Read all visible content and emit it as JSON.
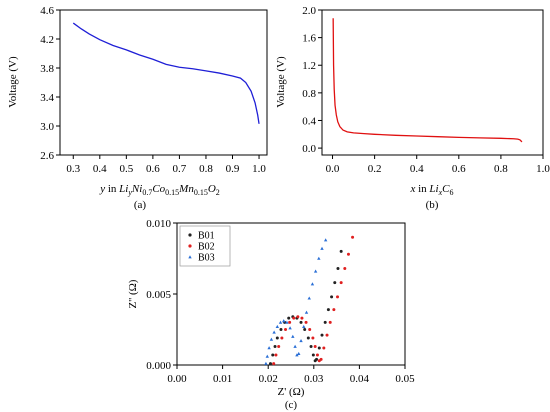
{
  "colors": {
    "a": "#1f1fd6",
    "b": "#e01010",
    "c_b01": "#222222",
    "c_b02": "#e02020",
    "c_b03": "#2a6fd6"
  },
  "chart_data": [
    {
      "type": "line",
      "panel": "(a)",
      "ylabel": "Voltage (V)",
      "xlabel_parts": {
        "y": "y",
        "in": " in ",
        "li": "Li",
        "ni": "Ni",
        "ni_sub": "0.7",
        "co": "Co",
        "co_sub": "0.15",
        "mn": "Mn",
        "mn_sub": "0.15",
        "o": "O",
        "o_sub": "2"
      },
      "xlim": [
        0.25,
        1.03
      ],
      "ylim": [
        2.6,
        4.6
      ],
      "xticks": [
        0.3,
        0.4,
        0.5,
        0.6,
        0.7,
        0.8,
        0.9,
        1.0
      ],
      "yticks": [
        2.6,
        3.0,
        3.4,
        3.8,
        4.2,
        4.6
      ],
      "xtick_labels": [
        "0.3",
        "0.4",
        "0.5",
        "0.6",
        "0.7",
        "0.8",
        "0.9",
        "1.0"
      ],
      "ytick_labels": [
        "2.6",
        "3.0",
        "3.4",
        "3.8",
        "4.2",
        "4.6"
      ],
      "x": [
        0.3,
        0.33,
        0.36,
        0.4,
        0.45,
        0.5,
        0.55,
        0.6,
        0.65,
        0.7,
        0.75,
        0.8,
        0.85,
        0.9,
        0.93,
        0.95,
        0.97,
        0.985,
        0.995,
        1.0
      ],
      "y": [
        4.42,
        4.34,
        4.27,
        4.19,
        4.11,
        4.05,
        3.98,
        3.92,
        3.85,
        3.81,
        3.79,
        3.76,
        3.73,
        3.69,
        3.66,
        3.6,
        3.48,
        3.32,
        3.15,
        3.03
      ]
    },
    {
      "type": "line",
      "panel": "(b)",
      "ylabel": "Voltage (V)",
      "xlabel_parts": {
        "x": "x",
        "in": " in ",
        "li": "Li",
        "li_sub": "x",
        "c": "C",
        "c_sub": "6"
      },
      "xlim": [
        -0.05,
        1.0
      ],
      "ylim": [
        -0.1,
        2.0
      ],
      "xticks": [
        0.0,
        0.2,
        0.4,
        0.6,
        0.8,
        1.0
      ],
      "yticks": [
        0.0,
        0.4,
        0.8,
        1.2,
        1.6,
        2.0
      ],
      "xtick_labels": [
        "0.0",
        "0.2",
        "0.4",
        "0.6",
        "0.8",
        "1.0"
      ],
      "ytick_labels": [
        "0.0",
        "0.4",
        "0.8",
        "1.2",
        "1.6",
        "2.0"
      ],
      "x": [
        0.003,
        0.005,
        0.008,
        0.012,
        0.018,
        0.025,
        0.035,
        0.05,
        0.07,
        0.1,
        0.15,
        0.2,
        0.3,
        0.4,
        0.5,
        0.6,
        0.7,
        0.8,
        0.86,
        0.88,
        0.89,
        0.9
      ],
      "y": [
        1.88,
        1.2,
        0.85,
        0.62,
        0.48,
        0.38,
        0.31,
        0.26,
        0.235,
        0.22,
        0.21,
        0.2,
        0.185,
        0.175,
        0.165,
        0.155,
        0.148,
        0.142,
        0.135,
        0.13,
        0.12,
        0.09
      ]
    },
    {
      "type": "scatter",
      "panel": "(c)",
      "xlabel": "Z' (Ω)",
      "ylabel": "Z'' (Ω)",
      "xlim": [
        0.0,
        0.05
      ],
      "ylim": [
        0.0,
        0.01
      ],
      "xticks": [
        0.0,
        0.01,
        0.02,
        0.03,
        0.04,
        0.05
      ],
      "yticks": [
        0.0,
        0.005,
        0.01
      ],
      "xtick_labels": [
        "0.00",
        "0.01",
        "0.02",
        "0.03",
        "0.04",
        "0.05"
      ],
      "ytick_labels": [
        "0.000",
        "0.005",
        "0.010"
      ],
      "legend_position": "top-left",
      "series": [
        {
          "name": "B01",
          "x": [
            0.0205,
            0.021,
            0.0215,
            0.022,
            0.0228,
            0.0236,
            0.0245,
            0.0254,
            0.0263,
            0.0272,
            0.028,
            0.0288,
            0.0294,
            0.0299,
            0.0303,
            0.0306,
            0.0312,
            0.0318,
            0.0325,
            0.0332,
            0.0339,
            0.0346,
            0.0353,
            0.036
          ],
          "y": [
            0.0001,
            0.0007,
            0.0013,
            0.0019,
            0.0025,
            0.003,
            0.0033,
            0.0034,
            0.0033,
            0.003,
            0.0025,
            0.0019,
            0.0013,
            0.0007,
            0.0003,
            0.0004,
            0.0012,
            0.0021,
            0.003,
            0.0039,
            0.0048,
            0.0058,
            0.0068,
            0.008
          ]
        },
        {
          "name": "B02",
          "x": [
            0.0212,
            0.0217,
            0.0223,
            0.023,
            0.0238,
            0.0247,
            0.0256,
            0.0265,
            0.0274,
            0.0283,
            0.0291,
            0.0298,
            0.0303,
            0.0308,
            0.0312,
            0.0316,
            0.0322,
            0.0329,
            0.0336,
            0.0344,
            0.0352,
            0.036,
            0.0368,
            0.0376,
            0.0385
          ],
          "y": [
            0.0001,
            0.0007,
            0.0013,
            0.0019,
            0.0025,
            0.003,
            0.0033,
            0.0034,
            0.0033,
            0.003,
            0.0025,
            0.0019,
            0.0013,
            0.0007,
            0.0003,
            0.0004,
            0.0012,
            0.0021,
            0.003,
            0.0039,
            0.0048,
            0.0058,
            0.0068,
            0.0078,
            0.009
          ]
        },
        {
          "name": "B03",
          "x": [
            0.0195,
            0.0198,
            0.0202,
            0.0207,
            0.0213,
            0.022,
            0.0227,
            0.0234,
            0.0241,
            0.0248,
            0.0254,
            0.0259,
            0.0263,
            0.0267,
            0.0272,
            0.0278,
            0.0284,
            0.029,
            0.0297,
            0.0304,
            0.0311,
            0.0318,
            0.0326
          ],
          "y": [
            0.0001,
            0.0006,
            0.0012,
            0.0018,
            0.0023,
            0.0027,
            0.003,
            0.0031,
            0.003,
            0.0026,
            0.002,
            0.0013,
            0.0007,
            0.0008,
            0.0017,
            0.0027,
            0.0037,
            0.0047,
            0.0057,
            0.0066,
            0.0075,
            0.0082,
            0.0088
          ]
        }
      ]
    }
  ]
}
